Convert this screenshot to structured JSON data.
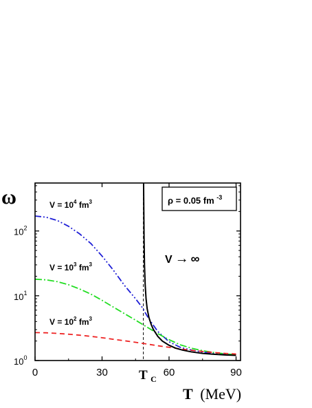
{
  "chart_data": {
    "type": "line",
    "xlabel": "T (MeV)",
    "xlabel_bold": "T",
    "xlabel_unit": "(MeV)",
    "ylabel": "ω",
    "yscale": "log",
    "xlim": [
      0,
      92
    ],
    "ylim": [
      1,
      550
    ],
    "x_ticks": [
      0,
      30,
      60,
      90
    ],
    "x_tick_labels": [
      "0",
      "30",
      "60",
      "90"
    ],
    "y_ticks": [
      1,
      10,
      100
    ],
    "y_tick_labels": [
      {
        "base": "10",
        "exp": "0"
      },
      {
        "base": "10",
        "exp": "1"
      },
      {
        "base": "10",
        "exp": "2"
      }
    ],
    "critical": {
      "x": 48.5,
      "base": "T",
      "sub": "C"
    },
    "legend": {
      "text": "ρ = 0.05 fm",
      "sup": "-3",
      "placement": "top-right"
    },
    "series": [
      {
        "name": "V = 10^4 fm^3",
        "label_parts": {
          "pre": "V = 10",
          "exp": "4",
          "post": " fm",
          "post_exp": "3"
        },
        "color": "#1f1fd6",
        "dash": "9 3 2 3 2 3",
        "x": [
          0,
          5,
          10,
          15,
          20,
          25,
          30,
          35,
          40,
          45,
          48,
          50,
          52,
          55,
          60,
          65,
          70,
          75,
          80,
          85,
          90
        ],
        "values": [
          170,
          163,
          145,
          118,
          90,
          64,
          41,
          25,
          14.5,
          9,
          6.6,
          5.0,
          3.9,
          2.8,
          1.95,
          1.6,
          1.45,
          1.35,
          1.29,
          1.25,
          1.22
        ]
      },
      {
        "name": "V = 10^3 fm^3",
        "label_parts": {
          "pre": "V = 10",
          "exp": "3",
          "post": "  fm",
          "post_exp": "3"
        },
        "color": "#22dd22",
        "dash": "10 3 2 3",
        "x": [
          0,
          5,
          10,
          15,
          20,
          25,
          30,
          35,
          40,
          45,
          50,
          55,
          60,
          65,
          70,
          75,
          80,
          85,
          90
        ],
        "values": [
          18,
          17.6,
          16.5,
          14.8,
          12.7,
          10.6,
          8.5,
          6.7,
          5.3,
          4.2,
          3.3,
          2.6,
          2.1,
          1.75,
          1.55,
          1.42,
          1.33,
          1.27,
          1.23
        ]
      },
      {
        "name": "V = 10^2 fm^3",
        "label_parts": {
          "pre": "V = 10",
          "exp": "2",
          "post": "  fm",
          "post_exp": "3"
        },
        "color": "#ee2222",
        "dash": "7 5",
        "x": [
          0,
          5,
          10,
          15,
          20,
          25,
          30,
          35,
          40,
          45,
          50,
          55,
          60,
          65,
          70,
          75,
          80,
          85,
          90
        ],
        "values": [
          2.7,
          2.68,
          2.62,
          2.55,
          2.46,
          2.36,
          2.25,
          2.13,
          2.02,
          1.91,
          1.8,
          1.69,
          1.6,
          1.51,
          1.44,
          1.38,
          1.33,
          1.29,
          1.26
        ]
      },
      {
        "name": "V → ∞",
        "label_parts": {
          "pre": "V",
          "arrow": "→",
          "post": "∞"
        },
        "color": "#000000",
        "dash": "",
        "x": [
          48.6,
          48.7,
          48.8,
          49,
          49.3,
          49.7,
          50.2,
          51,
          52,
          53,
          55,
          57,
          60,
          63,
          66,
          70,
          75,
          80,
          85,
          90
        ],
        "values": [
          540,
          200,
          80,
          30,
          15,
          9,
          6.3,
          4.6,
          3.6,
          3.0,
          2.35,
          2.0,
          1.72,
          1.55,
          1.45,
          1.36,
          1.29,
          1.25,
          1.22,
          1.2
        ]
      }
    ]
  }
}
